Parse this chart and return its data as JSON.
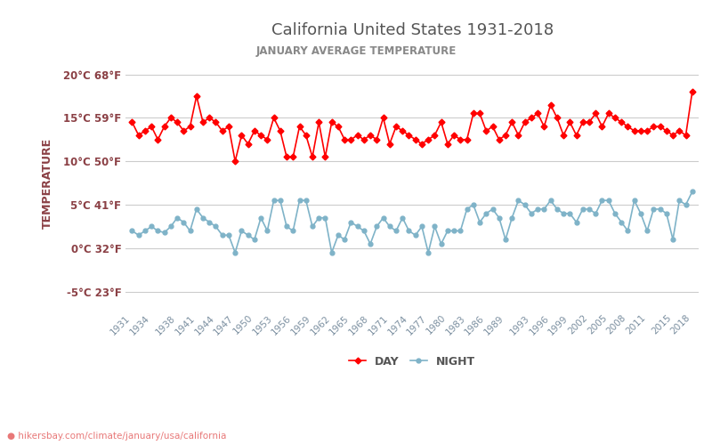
{
  "title": "California United States 1931-2018",
  "subtitle": "JANUARY AVERAGE TEMPERATURE",
  "ylabel": "TEMPERATURE",
  "website": "hikersbay.com/climate/january/usa/california",
  "legend_night": "NIGHT",
  "legend_day": "DAY",
  "years": [
    1931,
    1932,
    1933,
    1934,
    1935,
    1936,
    1937,
    1938,
    1939,
    1940,
    1941,
    1942,
    1943,
    1944,
    1945,
    1946,
    1947,
    1948,
    1949,
    1950,
    1951,
    1952,
    1953,
    1954,
    1955,
    1956,
    1957,
    1958,
    1959,
    1960,
    1961,
    1962,
    1963,
    1964,
    1965,
    1966,
    1967,
    1968,
    1969,
    1970,
    1971,
    1972,
    1973,
    1974,
    1975,
    1976,
    1977,
    1978,
    1979,
    1980,
    1981,
    1982,
    1983,
    1984,
    1985,
    1986,
    1987,
    1988,
    1989,
    1990,
    1991,
    1992,
    1993,
    1994,
    1995,
    1996,
    1997,
    1998,
    1999,
    2000,
    2001,
    2002,
    2003,
    2004,
    2005,
    2006,
    2007,
    2008,
    2009,
    2010,
    2011,
    2012,
    2013,
    2014,
    2015,
    2016,
    2017,
    2018
  ],
  "day_temps": [
    14.5,
    13.0,
    13.5,
    14.0,
    12.5,
    14.0,
    15.0,
    14.5,
    13.5,
    14.0,
    17.5,
    14.5,
    15.0,
    14.5,
    13.5,
    14.0,
    10.0,
    13.0,
    12.0,
    13.5,
    13.0,
    12.5,
    15.0,
    13.5,
    10.5,
    10.5,
    14.0,
    13.0,
    10.5,
    14.5,
    10.5,
    14.5,
    14.0,
    12.5,
    12.5,
    13.0,
    12.5,
    13.0,
    12.5,
    15.0,
    12.0,
    14.0,
    13.5,
    13.0,
    12.5,
    12.0,
    12.5,
    13.0,
    14.5,
    12.0,
    13.0,
    12.5,
    12.5,
    15.5,
    15.5,
    13.5,
    14.0,
    12.5,
    13.0,
    14.5,
    13.0,
    14.5,
    15.0,
    15.5,
    14.0,
    16.5,
    15.0,
    13.0,
    14.5,
    13.0,
    14.5,
    14.5,
    15.5,
    14.0,
    15.5,
    15.0,
    14.5,
    14.0,
    13.5,
    13.5,
    13.5,
    14.0,
    14.0,
    13.5,
    13.0,
    13.5,
    13.0,
    18.0
  ],
  "night_temps": [
    2.0,
    1.5,
    2.0,
    2.5,
    2.0,
    1.8,
    2.5,
    3.5,
    3.0,
    2.0,
    4.5,
    3.5,
    3.0,
    2.5,
    1.5,
    1.5,
    -0.5,
    2.0,
    1.5,
    1.0,
    3.5,
    2.0,
    5.5,
    5.5,
    2.5,
    2.0,
    5.5,
    5.5,
    2.5,
    3.5,
    3.5,
    -0.5,
    1.5,
    1.0,
    3.0,
    2.5,
    2.0,
    0.5,
    2.5,
    3.5,
    2.5,
    2.0,
    3.5,
    2.0,
    1.5,
    2.5,
    -0.5,
    2.5,
    0.5,
    2.0,
    2.0,
    2.0,
    4.5,
    5.0,
    3.0,
    4.0,
    4.5,
    3.5,
    1.0,
    3.5,
    5.5,
    5.0,
    4.0,
    4.5,
    4.5,
    5.5,
    4.5,
    4.0,
    4.0,
    3.0,
    4.5,
    4.5,
    4.0,
    5.5,
    5.5,
    4.0,
    3.0,
    2.0,
    5.5,
    4.0,
    2.0,
    4.5,
    4.5,
    4.0,
    1.0,
    5.5,
    5.0,
    6.5
  ],
  "yticks_c": [
    -5,
    0,
    5,
    10,
    15,
    20
  ],
  "yticks_f": [
    23,
    32,
    41,
    50,
    59,
    68
  ],
  "xtick_years": [
    1931,
    1934,
    1938,
    1941,
    1944,
    1947,
    1950,
    1953,
    1956,
    1959,
    1962,
    1965,
    1968,
    1971,
    1974,
    1977,
    1980,
    1983,
    1986,
    1989,
    1993,
    1996,
    1999,
    2002,
    2005,
    2008,
    2011,
    2015,
    2018
  ],
  "ylim": [
    -7,
    22
  ],
  "day_color": "#ff0000",
  "night_color": "#7fb3c8",
  "title_color": "#555555",
  "subtitle_color": "#888888",
  "grid_color": "#cccccc",
  "background_color": "#ffffff",
  "ylabel_color": "#8b4045",
  "tick_color": "#8b4045",
  "website_color": "#e87878"
}
